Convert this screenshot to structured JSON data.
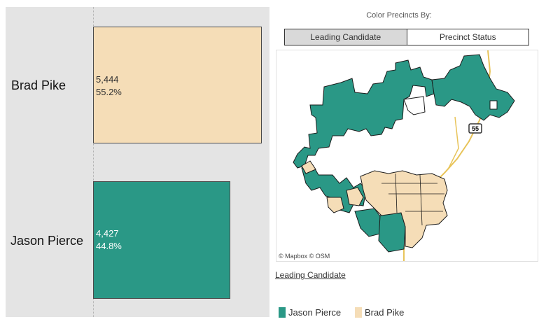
{
  "candidates": [
    {
      "name": "Brad Pike",
      "votes": "5,444",
      "percent": "55.2%",
      "share": 0.552,
      "color": "#f5ddb7",
      "text_color": "#333333"
    },
    {
      "name": "Jason Pierce",
      "votes": "4,427",
      "percent": "44.8%",
      "share": 0.448,
      "color": "#2a9886",
      "text_color": "#ffffff"
    }
  ],
  "color_by": {
    "label": "Color Precincts By:",
    "options": [
      "Leading Candidate",
      "Precinct Status"
    ],
    "selected": "Leading Candidate"
  },
  "map": {
    "route_shield": "55",
    "attribution": [
      "© Mapbox",
      "© OSM"
    ],
    "colors": {
      "pierce": "#2a9886",
      "pike": "#f5ddb7",
      "road": "#e8c45a"
    }
  },
  "legend": {
    "title": "Leading Candidate",
    "items": [
      {
        "label": "Jason Pierce",
        "color": "#2a9886"
      },
      {
        "label": "Brad Pike",
        "color": "#f5ddb7"
      }
    ]
  }
}
